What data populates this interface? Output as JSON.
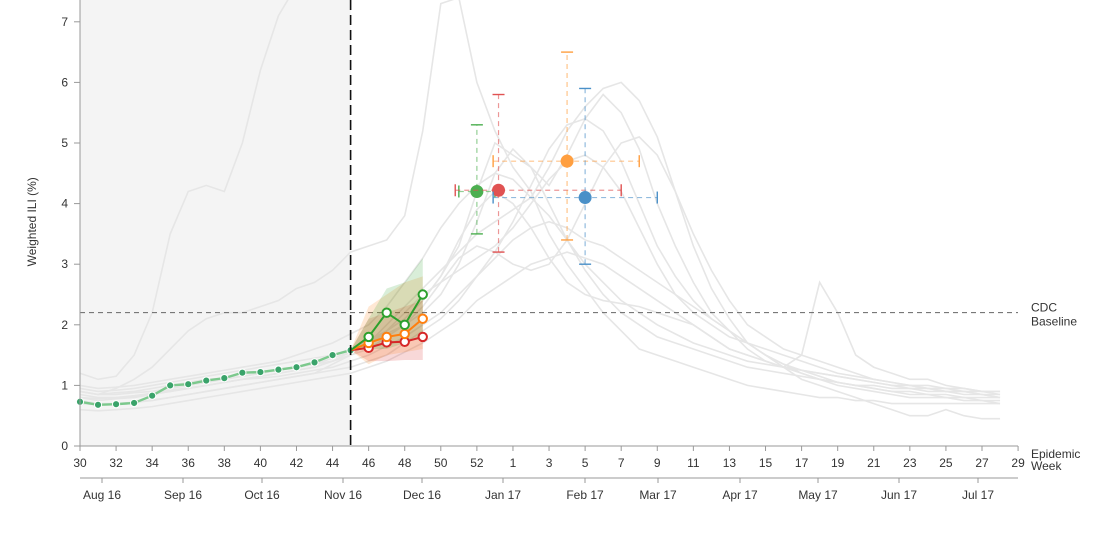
{
  "chart_data": {
    "type": "line",
    "ylabel": "Weighted ILI (%)",
    "xlabel": "Epidemic Week",
    "ylim": [
      0,
      7.4
    ],
    "y_ticks": [
      "0",
      "1",
      "2",
      "3",
      "4",
      "5",
      "6",
      "7"
    ],
    "week_ticks": [
      "30",
      "32",
      "34",
      "36",
      "38",
      "40",
      "42",
      "44",
      "46",
      "48",
      "50",
      "52",
      "1",
      "3",
      "5",
      "7",
      "9",
      "11",
      "13",
      "15",
      "17",
      "19",
      "21",
      "23",
      "25",
      "27",
      "29"
    ],
    "month_ticks": [
      "Aug 16",
      "Sep 16",
      "Oct 16",
      "Nov 16",
      "Dec 16",
      "Jan 17",
      "Feb 17",
      "Mar 17",
      "Apr 17",
      "May 17",
      "Jun 17",
      "Jul 17"
    ],
    "baseline": {
      "value": 2.2,
      "label_line1": "CDC",
      "label_line2": "Baseline"
    },
    "current_week_index": 15,
    "observed": {
      "name": "Observed",
      "color": "#3aa36a",
      "values": [
        0.73,
        0.68,
        0.69,
        0.71,
        0.83,
        1.0,
        1.02,
        1.08,
        1.12,
        1.21,
        1.22,
        1.26,
        1.3,
        1.38,
        1.5,
        1.58
      ]
    },
    "forecast_start_index": 15,
    "forecasts": [
      {
        "color": "#d62728",
        "points": [
          1.58,
          1.62,
          1.71,
          1.72,
          1.8
        ],
        "band_low": [
          1.58,
          1.4,
          1.4,
          1.42,
          1.42
        ],
        "band_high": [
          1.58,
          2.1,
          2.2,
          2.3,
          2.4
        ]
      },
      {
        "color": "#ff7f0e",
        "points": [
          1.58,
          1.7,
          1.8,
          1.85,
          2.1
        ],
        "band_low": [
          1.58,
          1.35,
          1.5,
          1.55,
          1.6
        ],
        "band_high": [
          1.58,
          2.3,
          2.5,
          2.7,
          2.8
        ]
      },
      {
        "color": "#2ca02c",
        "points": [
          1.58,
          1.8,
          2.2,
          2.0,
          2.5
        ],
        "band_low": [
          1.58,
          1.6,
          1.6,
          1.7,
          1.8
        ],
        "band_high": [
          1.58,
          2.1,
          2.6,
          2.7,
          3.1
        ]
      }
    ],
    "peak_markers": [
      {
        "color": "#4caf50",
        "x": 52.0,
        "y": 4.2,
        "x_low": 51.0,
        "x_high": 53.0,
        "y_low": 3.5,
        "y_high": 5.3
      },
      {
        "color": "#e05252",
        "x": 53.2,
        "y": 4.22,
        "x_low": 50.8,
        "x_high": 60.0,
        "y_low": 3.2,
        "y_high": 5.8
      },
      {
        "color": "#ff9f40",
        "x": 57.0,
        "y": 4.7,
        "x_low": 52.9,
        "x_high": 61.0,
        "y_low": 3.4,
        "y_high": 6.5
      },
      {
        "color": "#4a90c8",
        "x": 58.0,
        "y": 4.1,
        "x_low": 52.9,
        "x_high": 62.0,
        "y_low": 3.0,
        "y_high": 5.9
      }
    ],
    "history": [
      [
        1.2,
        1.1,
        1.15,
        1.5,
        2.2,
        3.5,
        4.2,
        4.3,
        4.2,
        5.0,
        6.2,
        7.1,
        7.6,
        7.8,
        7.9,
        8.0
      ],
      [
        0.9,
        0.85,
        0.95,
        1.1,
        1.3,
        1.6,
        1.9,
        2.1,
        2.2,
        2.2,
        2.3,
        2.4,
        2.6,
        2.7,
        2.9,
        3.2,
        3.3,
        3.4,
        3.8,
        5.2,
        7.3,
        7.4,
        6.0,
        5.2,
        4.6,
        4.2,
        3.5,
        3.0,
        2.6,
        2.2,
        1.9,
        1.6,
        1.5,
        1.4,
        1.3,
        1.2,
        1.1,
        1.0,
        0.95,
        0.9,
        0.85,
        0.8,
        0.8,
        0.75,
        0.75,
        0.7,
        0.7,
        0.7,
        0.7,
        0.7,
        0.7,
        0.7
      ],
      [
        0.75,
        0.7,
        0.7,
        0.72,
        0.75,
        0.8,
        0.85,
        0.9,
        0.95,
        1.0,
        1.05,
        1.1,
        1.15,
        1.2,
        1.35,
        1.5,
        1.7,
        1.9,
        2.1,
        2.4,
        2.8,
        3.3,
        4.2,
        5.0,
        4.8,
        4.6,
        4.3,
        4.8,
        5.4,
        5.8,
        5.5,
        4.9,
        4.0,
        3.3,
        2.7,
        2.2,
        1.9,
        1.6,
        1.4,
        1.3,
        1.2,
        1.1,
        1.0,
        0.95,
        0.9,
        0.85,
        0.8,
        0.8,
        0.8,
        0.75,
        0.75,
        0.7
      ],
      [
        0.8,
        0.75,
        0.78,
        0.8,
        0.85,
        0.9,
        0.95,
        1.0,
        1.05,
        1.1,
        1.15,
        1.2,
        1.25,
        1.3,
        1.4,
        1.5,
        1.7,
        2.0,
        2.3,
        2.6,
        2.9,
        3.2,
        3.5,
        3.7,
        3.9,
        4.1,
        4.6,
        5.2,
        5.6,
        5.9,
        6.0,
        5.7,
        5.1,
        4.2,
        3.3,
        2.6,
        2.1,
        1.7,
        1.5,
        1.35,
        1.25,
        1.15,
        1.05,
        1.0,
        0.95,
        0.9,
        0.85,
        0.85,
        0.8,
        0.8,
        0.75,
        0.75
      ],
      [
        0.85,
        0.8,
        0.8,
        0.82,
        0.86,
        0.9,
        0.95,
        1.0,
        1.05,
        1.1,
        1.12,
        1.15,
        1.2,
        1.25,
        1.3,
        1.4,
        1.5,
        1.65,
        1.8,
        2.0,
        2.2,
        2.5,
        2.8,
        3.2,
        3.7,
        4.3,
        4.9,
        5.3,
        5.4,
        5.2,
        4.7,
        4.0,
        3.3,
        2.8,
        2.4,
        2.1,
        1.9,
        1.7,
        1.5,
        1.35,
        1.2,
        1.1,
        1.05,
        1.0,
        0.95,
        0.9,
        0.9,
        0.85,
        0.85,
        0.8,
        0.8,
        0.8
      ],
      [
        0.9,
        0.85,
        0.88,
        0.9,
        0.95,
        1.0,
        1.05,
        1.1,
        1.12,
        1.15,
        1.2,
        1.25,
        1.3,
        1.35,
        1.4,
        1.5,
        1.6,
        1.8,
        2.0,
        2.3,
        2.7,
        3.1,
        3.3,
        3.2,
        3.0,
        2.9,
        3.0,
        3.4,
        4.0,
        4.6,
        5.0,
        5.1,
        4.8,
        4.2,
        3.5,
        2.9,
        2.4,
        2.0,
        1.8,
        1.6,
        1.5,
        1.4,
        1.3,
        1.2,
        1.1,
        1.05,
        1.0,
        0.95,
        0.9,
        0.9,
        0.85,
        0.85
      ],
      [
        0.95,
        0.9,
        0.92,
        0.95,
        1.0,
        1.05,
        1.1,
        1.15,
        1.2,
        1.25,
        1.3,
        1.35,
        1.4,
        1.45,
        1.5,
        1.6,
        1.75,
        1.9,
        2.1,
        2.4,
        2.8,
        3.4,
        3.9,
        4.2,
        4.0,
        3.6,
        3.1,
        2.7,
        2.5,
        2.4,
        2.35,
        2.3,
        2.2,
        2.1,
        2.0,
        1.8,
        1.6,
        1.5,
        1.4,
        1.3,
        1.25,
        1.2,
        1.15,
        1.1,
        1.05,
        1.0,
        1.0,
        0.95,
        0.95,
        0.9,
        0.9,
        0.9
      ],
      [
        0.8,
        0.78,
        0.8,
        0.83,
        0.87,
        0.92,
        0.96,
        1.0,
        1.05,
        1.1,
        1.15,
        1.2,
        1.25,
        1.3,
        1.4,
        1.55,
        1.7,
        1.9,
        2.2,
        2.5,
        2.7,
        2.9,
        3.1,
        3.3,
        3.6,
        4.0,
        4.4,
        4.7,
        4.8,
        4.6,
        4.2,
        3.6,
        3.0,
        2.5,
        2.2,
        2.0,
        1.8,
        1.7,
        1.6,
        1.5,
        1.4,
        1.3,
        1.2,
        1.15,
        1.1,
        1.05,
        1.0,
        1.0,
        0.95,
        0.95,
        0.9,
        0.9
      ],
      [
        0.7,
        0.68,
        0.7,
        0.72,
        0.76,
        0.8,
        0.85,
        0.9,
        0.95,
        1.0,
        1.05,
        1.1,
        1.15,
        1.2,
        1.25,
        1.3,
        1.4,
        1.5,
        1.7,
        1.9,
        2.1,
        2.4,
        2.8,
        3.1,
        3.4,
        3.6,
        3.7,
        3.6,
        3.4,
        3.3,
        3.1,
        2.9,
        2.7,
        2.5,
        2.3,
        2.1,
        1.9,
        1.7,
        1.5,
        1.3,
        1.1,
        1.0,
        0.9,
        0.8,
        0.7,
        0.6,
        0.5,
        0.5,
        0.6,
        0.5,
        0.45,
        0.45
      ],
      [
        0.6,
        0.58,
        0.6,
        0.62,
        0.65,
        0.7,
        0.75,
        0.8,
        0.85,
        0.9,
        0.95,
        1.0,
        1.05,
        1.1,
        1.15,
        1.2,
        1.3,
        1.4,
        1.55,
        1.7,
        1.9,
        2.1,
        2.4,
        2.6,
        2.8,
        3.0,
        3.1,
        3.2,
        3.1,
        3.0,
        2.8,
        2.6,
        2.4,
        2.2,
        2.0,
        1.8,
        1.6,
        1.5,
        1.4,
        1.3,
        1.5,
        2.7,
        2.2,
        1.5,
        1.3,
        1.2,
        1.1,
        1.1,
        1.0,
        0.95,
        0.9,
        0.85
      ],
      [
        1.0,
        0.95,
        0.97,
        1.0,
        1.05,
        1.1,
        1.15,
        1.2,
        1.25,
        1.3,
        1.35,
        1.4,
        1.5,
        1.6,
        1.7,
        1.85,
        2.0,
        2.3,
        2.7,
        3.1,
        3.6,
        4.0,
        4.3,
        4.5,
        4.4,
        4.1,
        3.8,
        3.4,
        3.0,
        2.7,
        2.4,
        2.2,
        2.0,
        1.85,
        1.7,
        1.6,
        1.5,
        1.4,
        1.35,
        1.3,
        1.25,
        1.2,
        1.15,
        1.1,
        1.05,
        1.0,
        0.95,
        0.95,
        0.9,
        0.9,
        0.85,
        0.8
      ],
      [
        0.9,
        0.85,
        0.85,
        0.88,
        0.9,
        0.95,
        1.0,
        1.05,
        1.1,
        1.15,
        1.2,
        1.25,
        1.3,
        1.35,
        1.45,
        1.55,
        1.7,
        1.85,
        2.0,
        2.2,
        2.5,
        3.0,
        3.7,
        4.5,
        4.9,
        4.6,
        4.0,
        3.4,
        2.9,
        2.5,
        2.2,
        2.0,
        1.8,
        1.7,
        1.6,
        1.5,
        1.4,
        1.3,
        1.25,
        1.2,
        1.15,
        1.1,
        1.05,
        1.0,
        1.0,
        0.95,
        0.95,
        0.9,
        0.9,
        0.85,
        0.85,
        0.8
      ]
    ]
  }
}
